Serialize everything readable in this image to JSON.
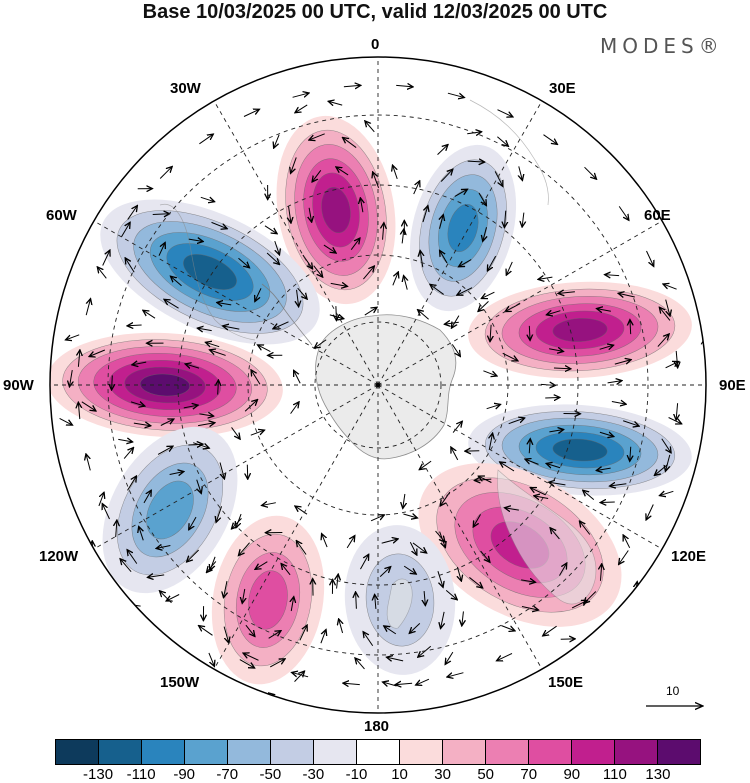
{
  "header": {
    "title": "Base 10/03/2025 00 UTC, valid 12/03/2025 00 UTC",
    "brand": "MODES®"
  },
  "map": {
    "projection": "south-polar-stereographic",
    "longitude_labels": {
      "lon_0": "0",
      "lon_30e": "30E",
      "lon_60e": "60E",
      "lon_90e": "90E",
      "lon_120e": "120E",
      "lon_150e": "150E",
      "lon_180": "180",
      "lon_150w": "150W",
      "lon_120w": "120W",
      "lon_90w": "90W",
      "lon_60w": "60W",
      "lon_30w": "30W"
    },
    "pattern": "wavenumber-4 alternating positive/negative anomaly lobes around Antarctica",
    "lobes": [
      {
        "direction": "0-30W",
        "sign": "positive",
        "peak_level": 110
      },
      {
        "direction": "30E",
        "sign": "negative",
        "peak_level": -90
      },
      {
        "direction": "60W",
        "sign": "negative",
        "peak_level": -110
      },
      {
        "direction": "75E",
        "sign": "positive",
        "peak_level": 110
      },
      {
        "direction": "90W",
        "sign": "positive",
        "peak_level": 130
      },
      {
        "direction": "105E",
        "sign": "negative",
        "peak_level": -110
      },
      {
        "direction": "120W",
        "sign": "negative",
        "peak_level": -70
      },
      {
        "direction": "135E",
        "sign": "positive",
        "peak_level": 90
      },
      {
        "direction": "150W",
        "sign": "positive",
        "peak_level": 70
      },
      {
        "direction": "180",
        "sign": "negative",
        "peak_level": -30
      }
    ],
    "reference_vector": "10"
  },
  "colorbar": {
    "colors": [
      "#0d3a5c",
      "#16608d",
      "#2a84bd",
      "#5aa2cf",
      "#93b9dc",
      "#c3cde4",
      "#e6e6f0",
      "#ffffff",
      "#fbdcdc",
      "#f4b0c4",
      "#ec7fb2",
      "#df4ea1",
      "#c11f8e",
      "#96127f",
      "#5c0c6e"
    ],
    "tick_labels": [
      "-130",
      "-110",
      "-90",
      "-70",
      "-50",
      "-30",
      "-10",
      "10",
      "30",
      "50",
      "70",
      "90",
      "110",
      "130"
    ]
  },
  "colors": {
    "land": "#ececec",
    "grid": "#222222",
    "arrow": "#000000"
  }
}
